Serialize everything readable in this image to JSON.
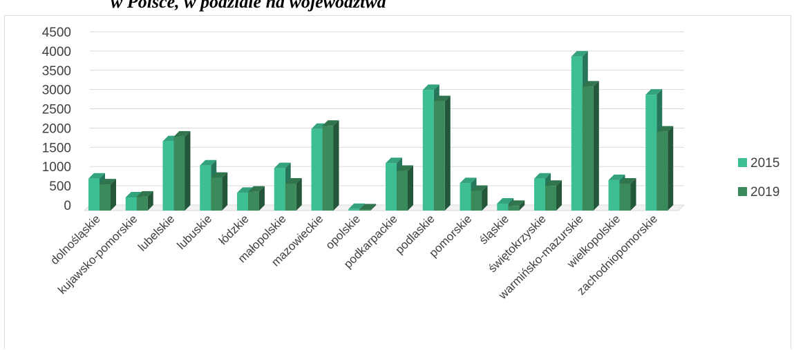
{
  "caption": "w Polsce, w podziale na województwa",
  "chart_data": {
    "type": "bar",
    "categories": [
      "dolnośląskie",
      "kujawsko-pomorskie",
      "lubelskie",
      "lubuskie",
      "łódzkie",
      "małopolskie",
      "mazowieckie",
      "opolskie",
      "podkarpackie",
      "podlaskie",
      "pomorskie",
      "śląskie",
      "świętokrzyskie",
      "warmińsko-mazurskie",
      "wielkopolskie",
      "zachodniopomorskie"
    ],
    "series": [
      {
        "name": "2015",
        "color": "#3dbf93",
        "values": [
          830,
          340,
          1800,
          1170,
          460,
          1100,
          2120,
          40,
          1230,
          3130,
          710,
          180,
          830,
          4000,
          790,
          3010
        ]
      },
      {
        "name": "2019",
        "color": "#3a8a5c",
        "values": [
          680,
          360,
          1920,
          850,
          490,
          700,
          2200,
          30,
          1030,
          2840,
          510,
          120,
          640,
          3220,
          700,
          2050
        ]
      }
    ],
    "yticks": [
      "0",
      "500",
      "1000",
      "1500",
      "2000",
      "2500",
      "3000",
      "3500",
      "4000",
      "4500"
    ],
    "ylim": [
      0,
      4500
    ],
    "grid": true,
    "legend": "right",
    "title": "",
    "xlabel": "",
    "ylabel": ""
  }
}
